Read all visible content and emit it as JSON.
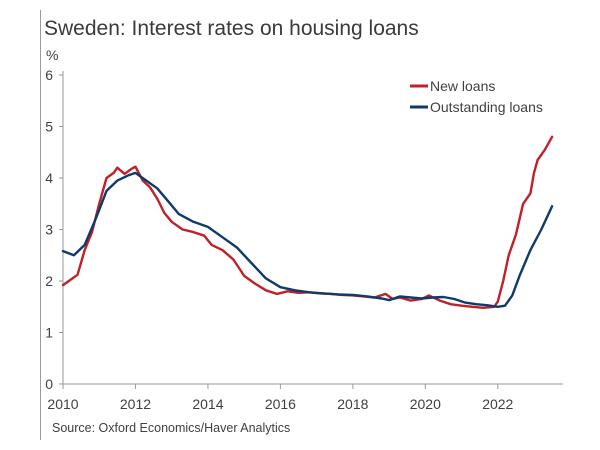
{
  "chart_data": {
    "type": "line",
    "title": "Sweden: Interest rates on housing loans",
    "unit_label": "%",
    "source": "Source: Oxford Economics/Haver Analytics",
    "xlim": [
      2010,
      2023.8
    ],
    "ylim": [
      0,
      6
    ],
    "x_ticks": [
      2010,
      2012,
      2014,
      2016,
      2018,
      2020,
      2022
    ],
    "y_ticks": [
      0,
      1,
      2,
      3,
      4,
      5,
      6
    ],
    "grid": false,
    "legend_position": "top-right",
    "series": [
      {
        "name": "New loans",
        "color": "#c0202a",
        "x": [
          2010.0,
          2010.2,
          2010.4,
          2010.6,
          2010.8,
          2011.0,
          2011.2,
          2011.4,
          2011.5,
          2011.7,
          2011.9,
          2012.0,
          2012.2,
          2012.4,
          2012.6,
          2012.8,
          2013.0,
          2013.3,
          2013.6,
          2013.9,
          2014.1,
          2014.4,
          2014.7,
          2015.0,
          2015.3,
          2015.6,
          2015.9,
          2016.2,
          2016.5,
          2016.8,
          2017.1,
          2017.4,
          2017.7,
          2018.0,
          2018.3,
          2018.6,
          2018.9,
          2019.1,
          2019.3,
          2019.6,
          2019.9,
          2020.1,
          2020.4,
          2020.7,
          2021.0,
          2021.3,
          2021.6,
          2021.9,
          2022.0,
          2022.15,
          2022.3,
          2022.5,
          2022.7,
          2022.9,
          2023.0,
          2023.1,
          2023.3,
          2023.5
        ],
        "y": [
          1.92,
          2.02,
          2.12,
          2.6,
          2.95,
          3.5,
          4.0,
          4.1,
          4.2,
          4.08,
          4.18,
          4.22,
          3.95,
          3.82,
          3.6,
          3.32,
          3.15,
          3.0,
          2.95,
          2.88,
          2.7,
          2.6,
          2.42,
          2.1,
          1.95,
          1.82,
          1.75,
          1.8,
          1.77,
          1.78,
          1.76,
          1.75,
          1.73,
          1.72,
          1.7,
          1.68,
          1.75,
          1.65,
          1.68,
          1.62,
          1.65,
          1.72,
          1.62,
          1.55,
          1.52,
          1.5,
          1.48,
          1.5,
          1.6,
          2.0,
          2.5,
          2.9,
          3.5,
          3.7,
          4.1,
          4.35,
          4.55,
          4.8
        ]
      },
      {
        "name": "Outstanding loans",
        "color": "#0f3a6a",
        "x": [
          2010.0,
          2010.3,
          2010.6,
          2010.9,
          2011.2,
          2011.5,
          2011.8,
          2012.0,
          2012.3,
          2012.6,
          2012.9,
          2013.2,
          2013.6,
          2014.0,
          2014.4,
          2014.8,
          2015.2,
          2015.6,
          2016.0,
          2016.4,
          2016.8,
          2017.2,
          2017.6,
          2018.0,
          2018.4,
          2018.8,
          2019.0,
          2019.3,
          2019.6,
          2019.9,
          2020.2,
          2020.5,
          2020.8,
          2021.1,
          2021.4,
          2021.7,
          2022.0,
          2022.2,
          2022.4,
          2022.6,
          2022.9,
          2023.2,
          2023.5
        ],
        "y": [
          2.58,
          2.5,
          2.7,
          3.2,
          3.75,
          3.95,
          4.05,
          4.1,
          3.95,
          3.8,
          3.55,
          3.3,
          3.15,
          3.05,
          2.85,
          2.65,
          2.35,
          2.05,
          1.88,
          1.82,
          1.78,
          1.76,
          1.74,
          1.73,
          1.7,
          1.66,
          1.63,
          1.7,
          1.68,
          1.66,
          1.68,
          1.69,
          1.65,
          1.58,
          1.55,
          1.53,
          1.5,
          1.52,
          1.72,
          2.1,
          2.6,
          3.0,
          3.45
        ]
      }
    ]
  }
}
